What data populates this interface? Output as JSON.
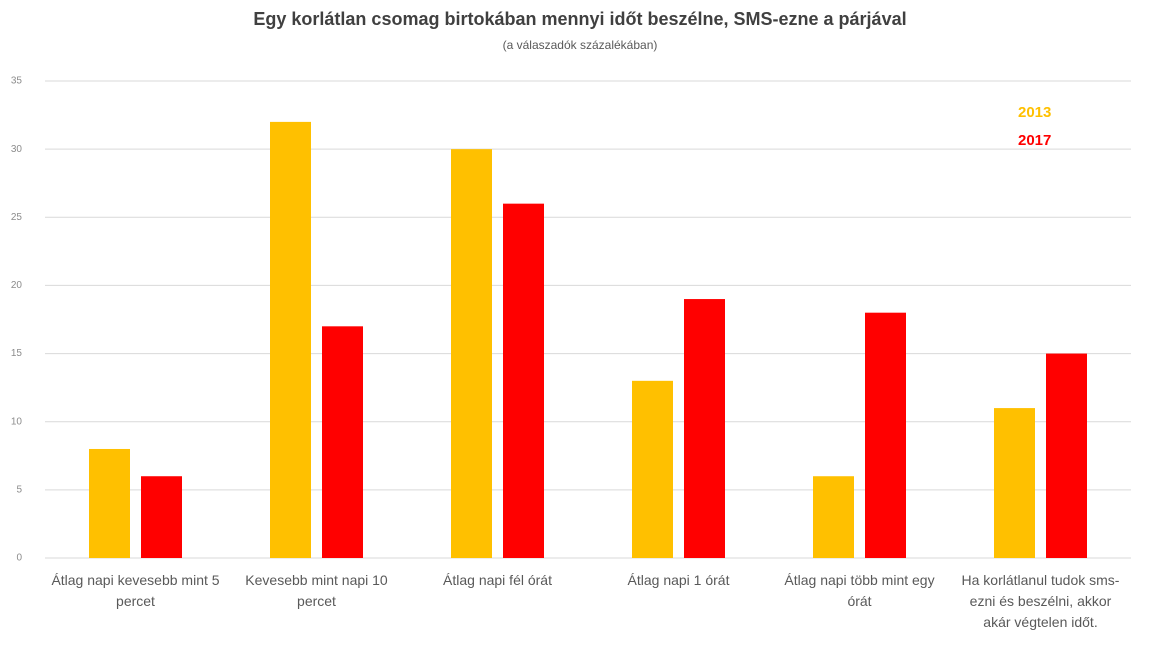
{
  "chart_data": {
    "type": "bar",
    "title": "Egy korlátlan csomag birtokában mennyi időt beszélne, SMS-ezne a párjával",
    "subtitle": "(a válaszadók százalékában)",
    "categories": [
      "Átlag napi kevesebb mint 5 percet",
      "Kevesebb mint napi 10 percet",
      "Átlag napi fél órát",
      "Átlag napi 1 órát",
      "Átlag napi több mint egy órát",
      "Ha korlátlanul tudok sms-ezni és beszélni, akkor akár végtelen időt."
    ],
    "series": [
      {
        "name": "2013",
        "color": "#ffc000",
        "values": [
          8,
          32,
          30,
          13,
          6,
          11
        ]
      },
      {
        "name": "2017",
        "color": "#ff0000",
        "values": [
          6,
          17,
          26,
          19,
          18,
          15
        ]
      }
    ],
    "ylim": [
      0,
      35
    ],
    "yticks": [
      0,
      5,
      10,
      15,
      20,
      25,
      30,
      35
    ],
    "grid": true,
    "legend": "top-right"
  }
}
